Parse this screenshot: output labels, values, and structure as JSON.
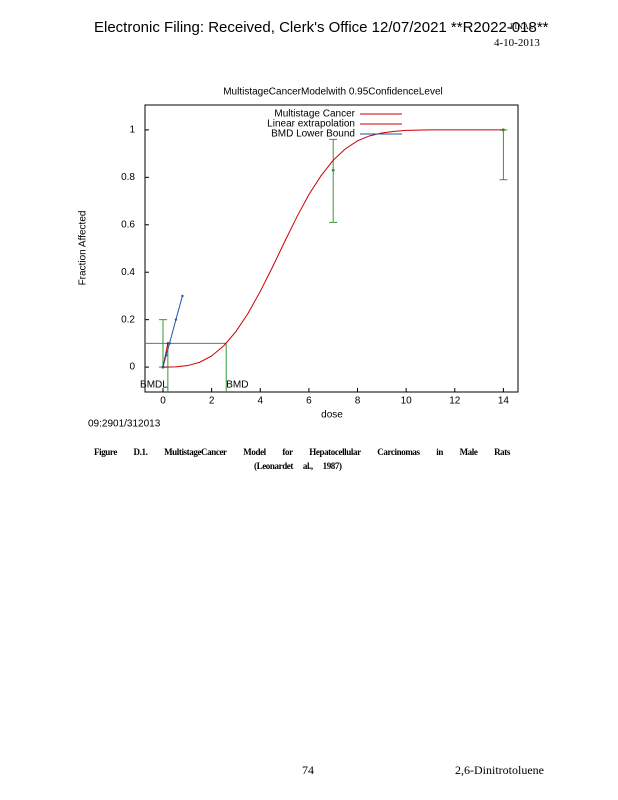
{
  "header": {
    "filing": "Electronic Filing: Received, Clerk's Office 12/07/2021 **R2022-018**",
    "status": "FINAL",
    "date": "4-10-2013"
  },
  "chart_data": {
    "type": "line",
    "title": "MultistageCancerModelwith 0.95ConfidenceLevel",
    "x_label": "dose",
    "y_label": "Fraction Affected",
    "xlim": [
      -0.74,
      14.6
    ],
    "ylim": [
      -0.105,
      1.105
    ],
    "xticks": [
      0,
      2,
      4,
      6,
      8,
      10,
      12,
      14
    ],
    "yticks": [
      0,
      0.2,
      0.4,
      0.6,
      0.8,
      1
    ],
    "series": [
      {
        "name": "Multistage Cancer",
        "color": "#cc0000",
        "x": [
          0,
          0.5,
          1,
          1.5,
          2,
          2.5,
          3,
          3.5,
          4,
          4.5,
          5,
          5.5,
          6,
          6.5,
          7,
          7.5,
          8,
          8.5,
          9,
          9.5,
          10,
          11,
          12,
          13,
          14
        ],
        "values": [
          0,
          0.001,
          0.006,
          0.02,
          0.047,
          0.09,
          0.15,
          0.227,
          0.319,
          0.421,
          0.528,
          0.632,
          0.727,
          0.807,
          0.872,
          0.92,
          0.954,
          0.975,
          0.987,
          0.994,
          0.998,
          1,
          1,
          1,
          1
        ]
      },
      {
        "name": "Linear extrapolation",
        "color": "#cc0000",
        "x": [
          0,
          0.2
        ],
        "values": [
          0,
          0.1
        ]
      },
      {
        "name": "BMD Lower Bound",
        "color": "#2255aa",
        "x": [
          0,
          0.13,
          0.27,
          0.53,
          0.8
        ],
        "values": [
          0,
          0.05,
          0.1,
          0.2,
          0.3
        ]
      }
    ],
    "observed": {
      "color": "#339933",
      "x": [
        0,
        7,
        14
      ],
      "values": [
        0,
        0.83,
        1
      ],
      "lower": [
        0,
        0.61,
        0.79
      ],
      "upper": [
        0.2,
        0.96,
        1
      ]
    },
    "bmr": 0.1,
    "bmd": {
      "label": "BMD",
      "value": 2.6
    },
    "bmdl": {
      "label": "BMDL",
      "value": 0.2
    },
    "note": "09:2901/312013"
  },
  "caption": {
    "line1": [
      "Figure",
      "D.1.",
      "MultistageCancer",
      "Model",
      "for",
      "Hepatocellular",
      "Carcinomas",
      "in",
      "Male",
      "Rats"
    ],
    "line2": "(Leonardet al., 1987)"
  },
  "footer": {
    "page": "74",
    "chemical": "2,6-Dinitrotoluene"
  }
}
